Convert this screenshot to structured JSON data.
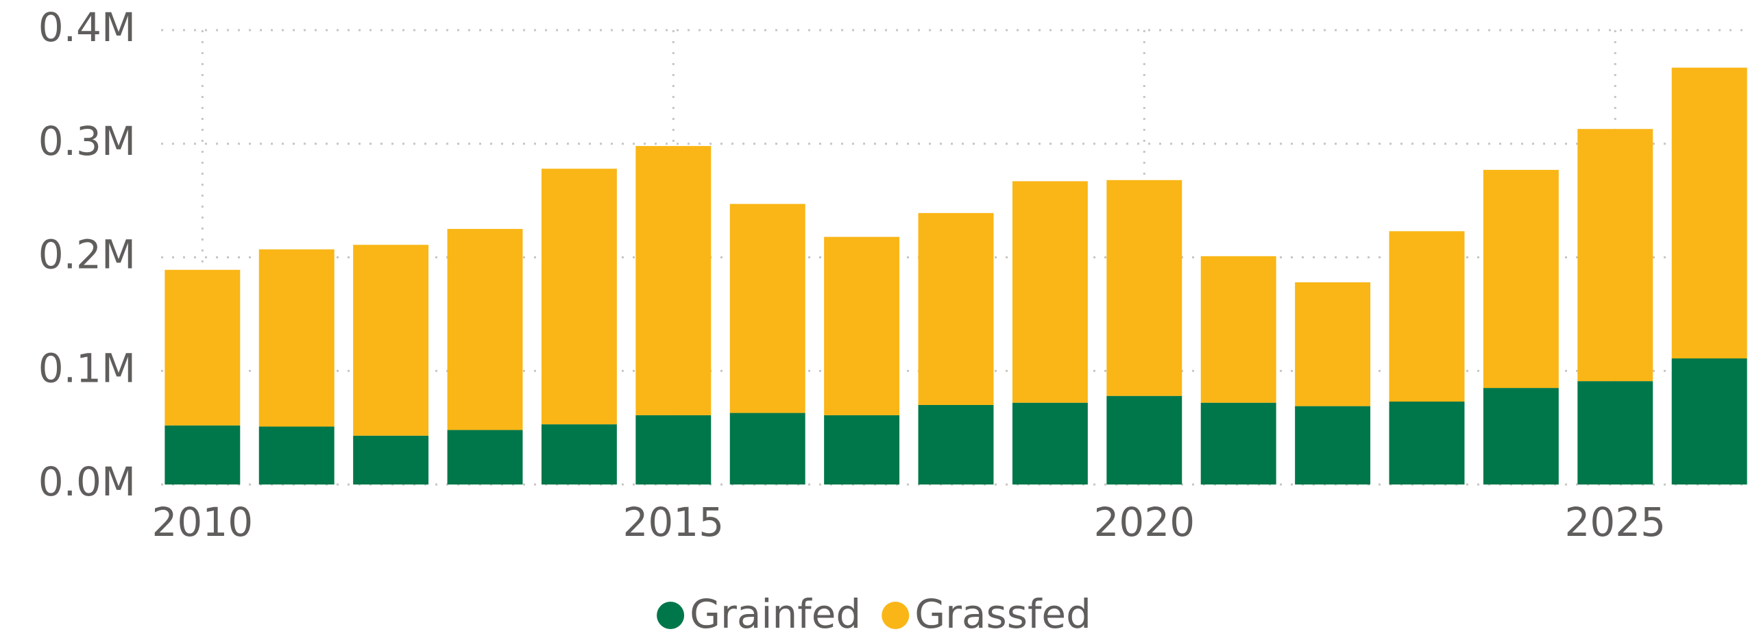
{
  "chart_data": {
    "type": "stacked_bar",
    "x": [
      2010,
      2011,
      2012,
      2013,
      2014,
      2015,
      2016,
      2017,
      2018,
      2019,
      2020,
      2021,
      2022,
      2023,
      2024,
      2025,
      2026
    ],
    "series": [
      {
        "name": "Grainfed",
        "color": "#00774a",
        "values": [
          52000,
          51000,
          43000,
          48000,
          53000,
          61000,
          63000,
          61000,
          70000,
          72000,
          78000,
          72000,
          69000,
          73000,
          85000,
          91000,
          111000
        ]
      },
      {
        "name": "Grassfed",
        "color": "#f9b616",
        "values": [
          137000,
          156000,
          168000,
          177000,
          225000,
          237000,
          184000,
          157000,
          169000,
          195000,
          190000,
          129000,
          109000,
          150000,
          192000,
          222000,
          256000
        ]
      }
    ],
    "xlim": [
      2009.59,
      2026.41
    ],
    "xticks": [
      2010,
      2015,
      2020,
      2025
    ],
    "ylim": [
      0,
      400000
    ],
    "yticks": [
      {
        "value": 0,
        "label": "0.0M"
      },
      {
        "value": 100000,
        "label": "0.1M"
      },
      {
        "value": 200000,
        "label": "0.2M"
      },
      {
        "value": 300000,
        "label": "0.3M"
      },
      {
        "value": 400000,
        "label": "0.4M"
      }
    ],
    "grid": true,
    "legend": "bottom"
  }
}
